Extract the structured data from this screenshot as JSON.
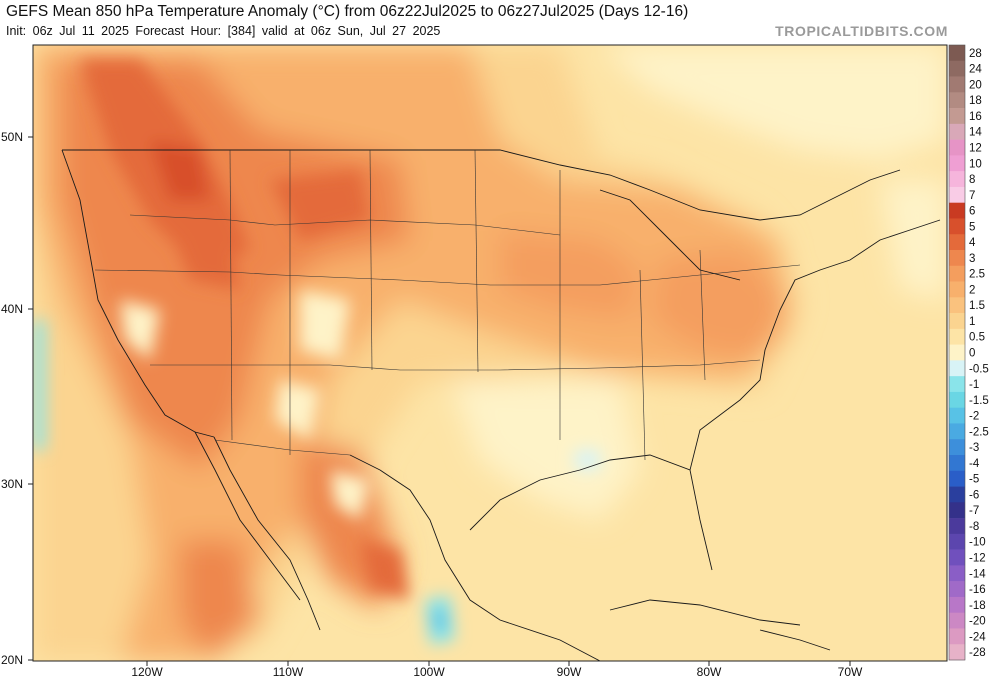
{
  "header": {
    "title": "GEFS Mean 850 hPa Temperature Anomaly (°C) from 06z22Jul2025 to 06z27Jul2025 (Days 12-16)",
    "subtitle": "Init: 06z Jul 11 2025   Forecast Hour: [384]   valid at 06z Sun, Jul 27 2025",
    "brand": "TROPICALTIDBITS.COM"
  },
  "map": {
    "lat_labels": [
      "50N",
      "40N",
      "30N",
      "20N"
    ],
    "lon_labels": [
      "120W",
      "110W",
      "100W",
      "90W",
      "80W",
      "70W"
    ]
  },
  "colorbar": {
    "levels": [
      "28",
      "24",
      "20",
      "18",
      "16",
      "14",
      "12",
      "10",
      "8",
      "7",
      "6",
      "5",
      "4",
      "3",
      "2.5",
      "2",
      "1.5",
      "1",
      "0.5",
      "0",
      "-0.5",
      "-1",
      "-1.5",
      "-2",
      "-2.5",
      "-3",
      "-4",
      "-5",
      "-6",
      "-7",
      "-8",
      "-10",
      "-12",
      "-14",
      "-16",
      "-18",
      "-20",
      "-24",
      "-28"
    ],
    "colors": [
      "#7d5a52",
      "#8e6a62",
      "#a17a72",
      "#b28b82",
      "#c39a92",
      "#d9a8b8",
      "#e694c6",
      "#ef9fd3",
      "#f6b5dc",
      "#f9cce6",
      "#c93a22",
      "#d8502c",
      "#e46a3a",
      "#ee874e",
      "#f49e5e",
      "#f8b06c",
      "#fac27e",
      "#fbd490",
      "#fde4a6",
      "#fef3c8",
      "#d8f3f6",
      "#8ae4ea",
      "#6ad6e4",
      "#58c2e6",
      "#4aaae2",
      "#3d8fdb",
      "#3277d2",
      "#2a5ec8",
      "#2a3f9e",
      "#34318a",
      "#4b3a9c",
      "#5c46ae",
      "#7050bd",
      "#8a5ec6",
      "#a06ac8",
      "#b877c8",
      "#cc88c4",
      "#dc9ac2",
      "#e7b2c8"
    ]
  }
}
